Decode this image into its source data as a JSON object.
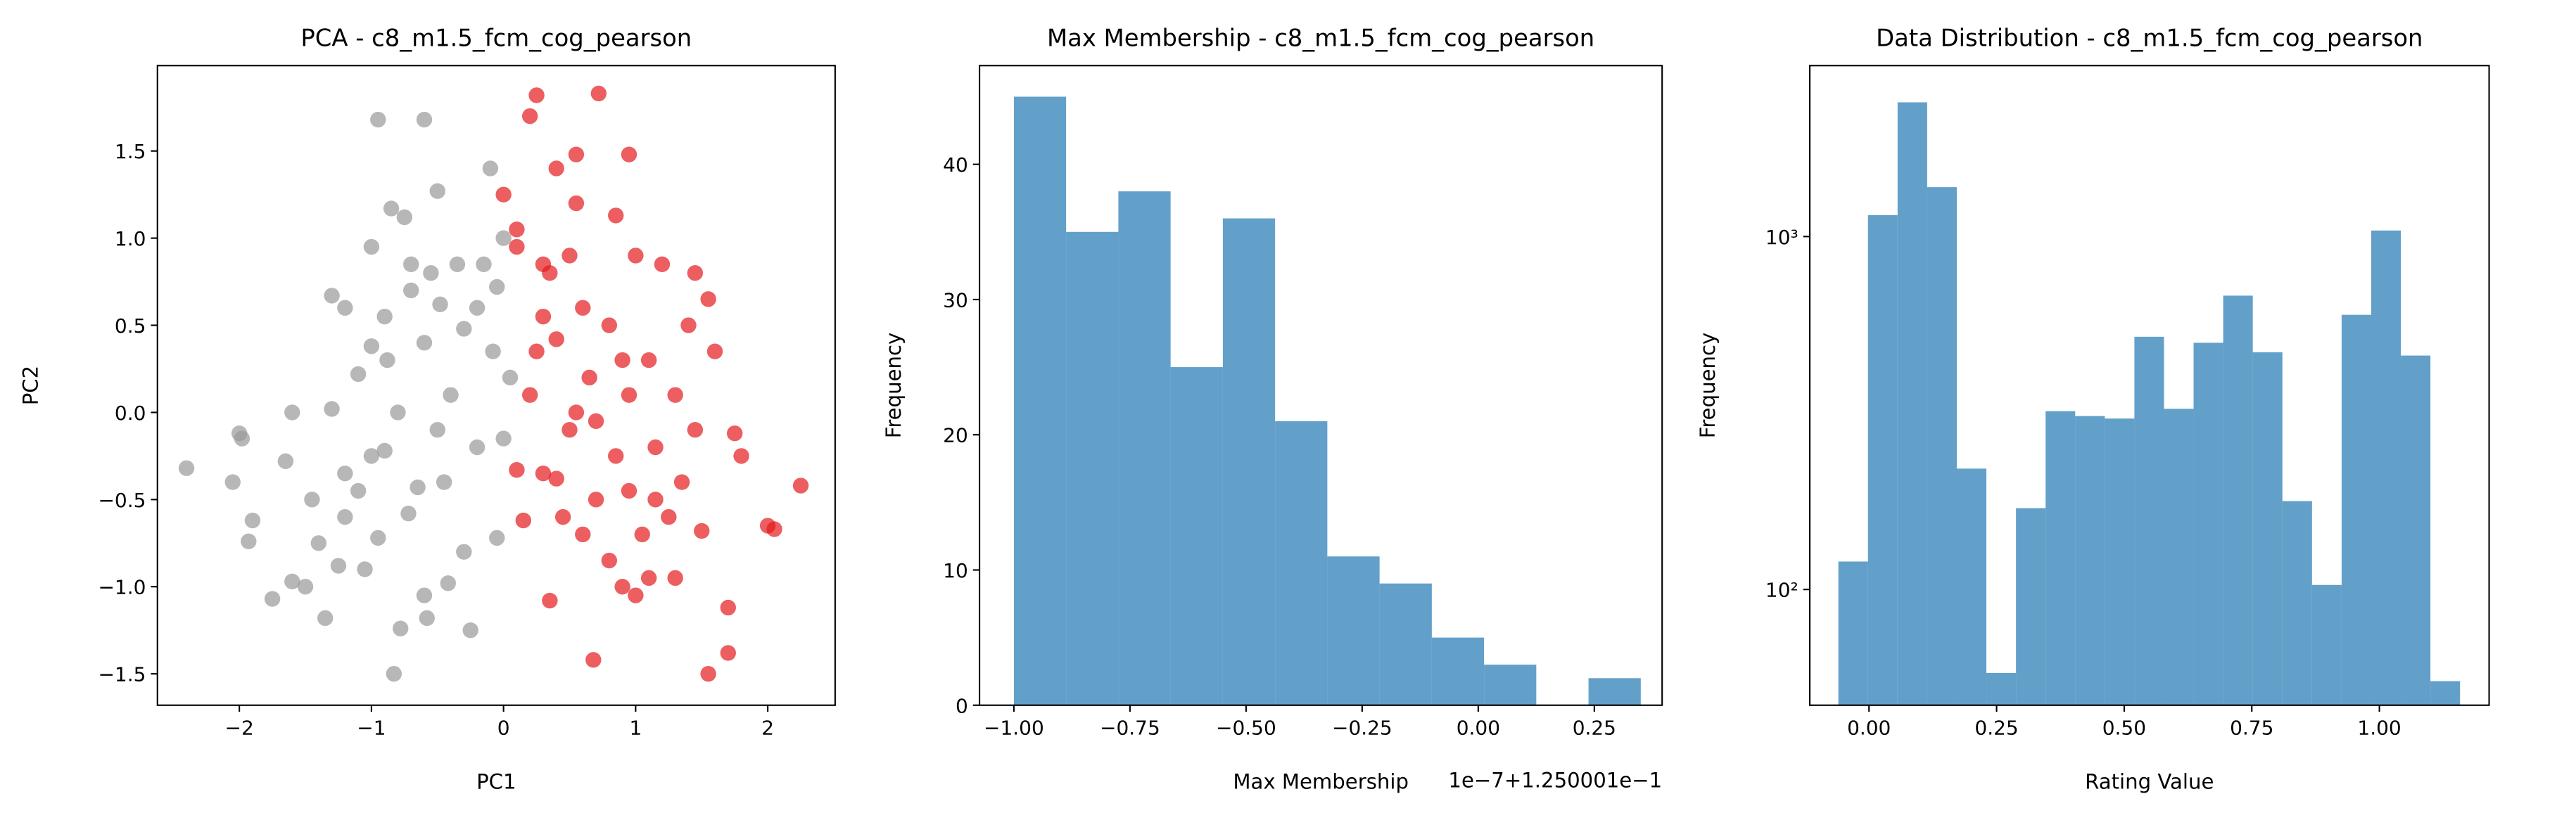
{
  "chart_data": [
    {
      "type": "scatter",
      "title": "PCA - c8_m1.5_fcm_cog_pearson",
      "xlabel": "PC1",
      "ylabel": "PC2",
      "xlim": [
        -2.62,
        2.51
      ],
      "ylim": [
        -1.68,
        1.99
      ],
      "xticks": [
        {
          "value": -2,
          "label": "−2"
        },
        {
          "value": -1,
          "label": "−1"
        },
        0,
        1,
        2
      ],
      "yticks": [
        {
          "value": -1.5,
          "label": "−1.5"
        },
        {
          "value": -1.0,
          "label": "−1.0"
        },
        {
          "value": -0.5,
          "label": "−0.5"
        },
        {
          "value": 0.0,
          "label": "0.0"
        },
        {
          "value": 0.5,
          "label": "0.5"
        },
        {
          "value": 1.0,
          "label": "1.0"
        },
        {
          "value": 1.5,
          "label": "1.5"
        }
      ],
      "series": [
        {
          "color": "#999999",
          "x": [
            -2.4,
            -2.05,
            -2.0,
            -1.98,
            -1.9,
            -1.93,
            -1.75,
            -1.65,
            -1.6,
            -1.5,
            -1.4,
            -1.35,
            -1.3,
            -1.25,
            -1.2,
            -1.3,
            -1.2,
            -1.2,
            -1.1,
            -1.1,
            -1.05,
            -1.0,
            -1.0,
            -0.95,
            -0.95,
            -0.9,
            -0.88,
            -0.85,
            -0.83,
            -0.8,
            -0.78,
            -0.75,
            -0.72,
            -0.7,
            -0.65,
            -0.6,
            -0.6,
            -0.58,
            -0.55,
            -0.5,
            -0.5,
            -0.48,
            -0.45,
            -0.42,
            -0.4,
            -0.35,
            -0.3,
            -0.3,
            -0.25,
            -0.2,
            -0.15,
            -0.1,
            -0.08,
            -0.05,
            -0.05,
            0.0,
            0.0,
            0.05,
            -0.6,
            -0.7,
            -1.45,
            -1.6,
            -0.9,
            -0.2,
            -1.0
          ],
          "values": [
            -0.32,
            -0.4,
            -0.12,
            -0.15,
            -0.62,
            -0.74,
            -1.07,
            -0.28,
            -0.97,
            -1.0,
            -0.75,
            -1.18,
            0.02,
            -0.88,
            -0.6,
            0.67,
            0.6,
            -0.35,
            -0.45,
            0.22,
            -0.9,
            0.38,
            0.95,
            1.68,
            -0.72,
            -0.22,
            0.3,
            1.17,
            -1.5,
            0.0,
            -1.24,
            1.12,
            -0.58,
            0.7,
            -0.43,
            1.68,
            0.4,
            -1.18,
            0.8,
            1.27,
            -0.1,
            0.62,
            -0.4,
            -0.98,
            0.1,
            0.85,
            -0.8,
            0.48,
            -1.25,
            -0.2,
            0.85,
            1.4,
            0.35,
            0.72,
            -0.72,
            1.0,
            -0.15,
            0.2,
            -1.05,
            0.85,
            -0.5,
            0.0,
            0.55,
            0.6,
            -0.25
          ]
        },
        {
          "color": "#e41a1c",
          "x": [
            0.2,
            0.25,
            0.4,
            0.55,
            0.72,
            0.95,
            0.0,
            0.1,
            0.3,
            0.35,
            0.4,
            0.5,
            0.55,
            0.6,
            0.65,
            0.7,
            0.8,
            0.85,
            0.9,
            1.0,
            1.1,
            1.15,
            1.2,
            1.3,
            1.4,
            1.45,
            1.5,
            1.55,
            1.6,
            1.75,
            1.8,
            2.0,
            2.05,
            2.25,
            1.7,
            1.7,
            1.55,
            1.3,
            1.1,
            1.0,
            0.9,
            0.68,
            0.35,
            0.3,
            0.2,
            0.15,
            0.1,
            0.45,
            0.5,
            0.6,
            0.7,
            0.85,
            0.95,
            1.05,
            1.15,
            1.25,
            1.35,
            1.45,
            0.4,
            0.25,
            0.55,
            0.8,
            0.3,
            0.95,
            0.1
          ],
          "values": [
            1.7,
            1.82,
            1.4,
            1.48,
            1.83,
            1.48,
            1.25,
            1.05,
            0.55,
            0.8,
            0.42,
            0.9,
            1.2,
            0.6,
            0.2,
            -0.05,
            0.5,
            1.13,
            0.3,
            0.9,
            0.3,
            -0.5,
            0.85,
            0.1,
            0.5,
            0.8,
            -0.68,
            0.65,
            0.35,
            -0.12,
            -0.25,
            -0.65,
            -0.67,
            -0.42,
            -1.38,
            -1.12,
            -1.5,
            -0.95,
            -0.95,
            -1.05,
            -1.0,
            -1.42,
            -1.08,
            -0.35,
            0.1,
            -0.62,
            -0.33,
            -0.6,
            -0.1,
            -0.7,
            -0.5,
            -0.25,
            -0.45,
            -0.7,
            -0.2,
            -0.6,
            -0.4,
            -0.1,
            -0.38,
            0.35,
            0.0,
            -0.85,
            0.85,
            0.1,
            0.95
          ]
        }
      ]
    },
    {
      "type": "histogram",
      "title": "Max Membership - c8_m1.5_fcm_cog_pearson",
      "xlabel": "Max Membership",
      "ylabel": "Frequency",
      "x_offset_label": "1e−7+1.250001e−1",
      "color": "#1f77b4",
      "bins": [
        -1.0,
        -0.8875,
        -0.775,
        -0.6625,
        -0.55,
        -0.4375,
        -0.325,
        -0.2125,
        -0.1,
        0.0125,
        0.125,
        0.2375,
        0.35
      ],
      "values": [
        45,
        35,
        38,
        25,
        36,
        21,
        11,
        9,
        5,
        3,
        0,
        2
      ],
      "xlim": [
        -1.074,
        0.396
      ],
      "ylim": [
        0,
        47.3
      ],
      "xticks": [
        {
          "value": -1.0,
          "label": "−1.00"
        },
        {
          "value": -0.75,
          "label": "−0.75"
        },
        {
          "value": -0.5,
          "label": "−0.50"
        },
        {
          "value": -0.25,
          "label": "−0.25"
        },
        {
          "value": 0.0,
          "label": "0.00"
        },
        {
          "value": 0.25,
          "label": "0.25"
        }
      ],
      "yticks": [
        0,
        10,
        20,
        30,
        40
      ]
    },
    {
      "type": "histogram",
      "title": "Data Distribution - c8_m1.5_fcm_cog_pearson",
      "xlabel": "Rating Value",
      "ylabel": "Frequency",
      "yscale": "log",
      "color": "#1f77b4",
      "bins": [
        -0.06,
        -0.002,
        0.056,
        0.114,
        0.172,
        0.23,
        0.288,
        0.346,
        0.404,
        0.462,
        0.52,
        0.578,
        0.636,
        0.694,
        0.752,
        0.81,
        0.868,
        0.926,
        0.984,
        1.042,
        1.1,
        1.158
      ],
      "values": [
        120,
        1150,
        2400,
        1380,
        220,
        58,
        170,
        320,
        310,
        305,
        520,
        325,
        500,
        680,
        470,
        178,
        103,
        600,
        1040,
        460,
        55
      ],
      "xlim": [
        -0.116,
        1.215
      ],
      "ylim": [
        47,
        3050
      ],
      "xticks": [
        {
          "value": 0.0,
          "label": "0.00"
        },
        {
          "value": 0.25,
          "label": "0.25"
        },
        {
          "value": 0.5,
          "label": "0.50"
        },
        {
          "value": 0.75,
          "label": "0.75"
        },
        {
          "value": 1.0,
          "label": "1.00"
        }
      ],
      "yticks": [
        {
          "value": 100,
          "label": "10²"
        },
        {
          "value": 1000,
          "label": "10³"
        }
      ]
    }
  ]
}
